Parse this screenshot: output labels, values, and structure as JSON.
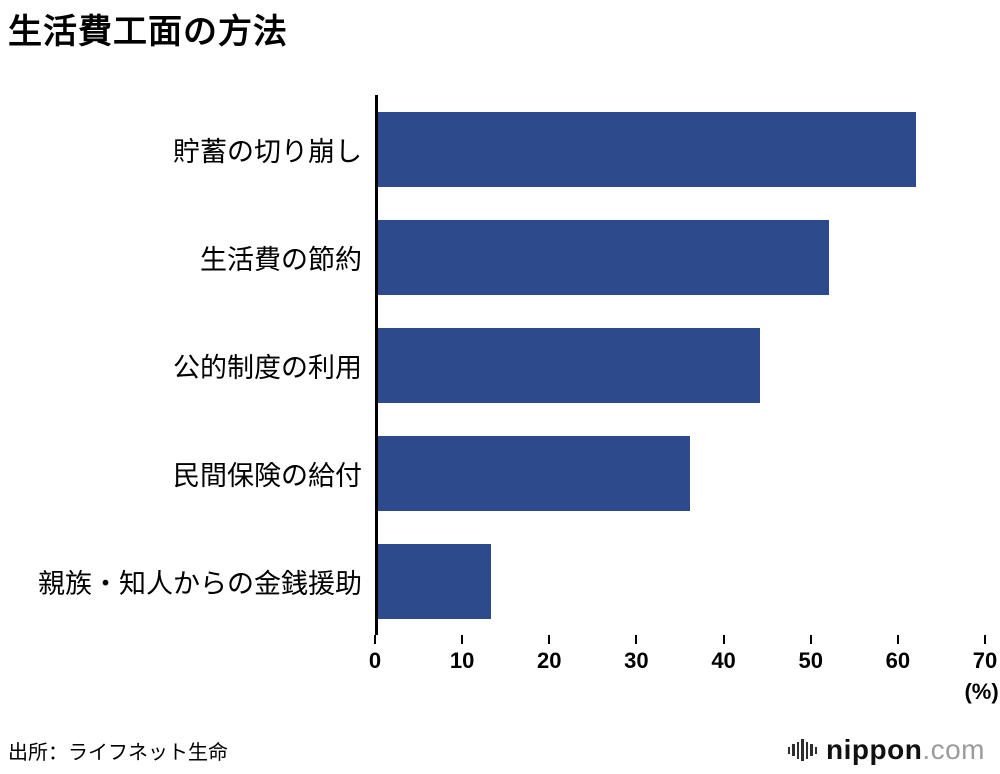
{
  "title": "生活費工面の方法",
  "source": "出所：ライフネット生命",
  "logo": {
    "name": "nippon",
    "tld": ".com"
  },
  "chart_data": {
    "type": "bar",
    "orientation": "horizontal",
    "title": "生活費工面の方法",
    "categories": [
      "貯蓄の切り崩し",
      "生活費の節約",
      "公的制度の利用",
      "民間保険の給付",
      "親族・知人からの金銭援助"
    ],
    "values": [
      62,
      52,
      44,
      36,
      13
    ],
    "xlabel": "",
    "ylabel": "",
    "xlim": [
      0,
      70
    ],
    "xticks": [
      0,
      10,
      20,
      30,
      40,
      50,
      60,
      70
    ],
    "unit_label": "(%)",
    "bar_color": "#2d4b8c",
    "grid": false,
    "legend": false
  }
}
